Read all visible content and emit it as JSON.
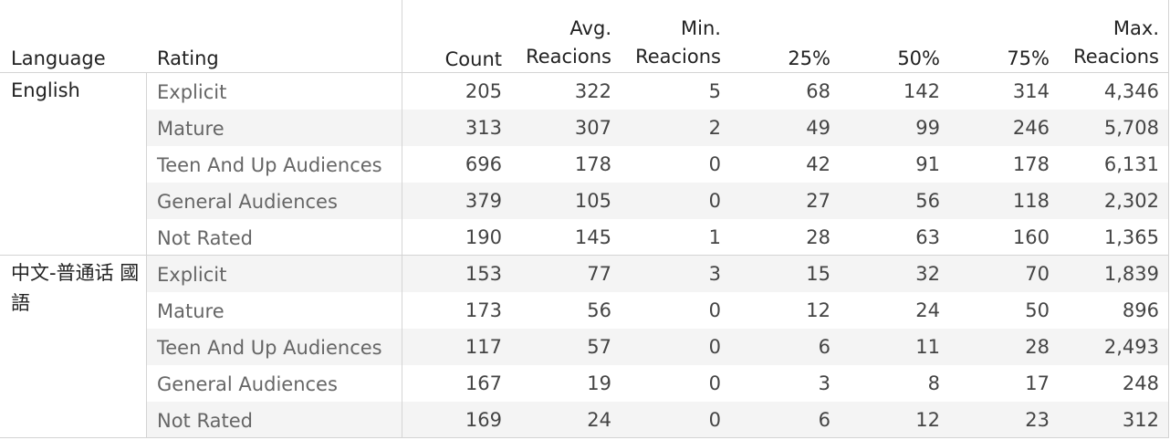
{
  "table": {
    "headers": {
      "language": "Language",
      "rating": "Rating",
      "count": "Count",
      "avg": [
        "Avg.",
        "Reacions"
      ],
      "min": [
        "Min.",
        "Reacions"
      ],
      "p25": "25%",
      "p50": "50%",
      "p75": "75%",
      "max": [
        "Max.",
        "Reacions"
      ]
    },
    "groups": [
      {
        "language": "English",
        "rows": [
          {
            "rating": "Explicit",
            "count": "205",
            "avg": "322",
            "min": "5",
            "p25": "68",
            "p50": "142",
            "p75": "314",
            "max": "4,346"
          },
          {
            "rating": "Mature",
            "count": "313",
            "avg": "307",
            "min": "2",
            "p25": "49",
            "p50": "99",
            "p75": "246",
            "max": "5,708"
          },
          {
            "rating": "Teen And Up Audiences",
            "count": "696",
            "avg": "178",
            "min": "0",
            "p25": "42",
            "p50": "91",
            "p75": "178",
            "max": "6,131"
          },
          {
            "rating": "General Audiences",
            "count": "379",
            "avg": "105",
            "min": "0",
            "p25": "27",
            "p50": "56",
            "p75": "118",
            "max": "2,302"
          },
          {
            "rating": "Not Rated",
            "count": "190",
            "avg": "145",
            "min": "1",
            "p25": "28",
            "p50": "63",
            "p75": "160",
            "max": "1,365"
          }
        ]
      },
      {
        "language": "中文-普通话 國語",
        "rows": [
          {
            "rating": "Explicit",
            "count": "153",
            "avg": "77",
            "min": "3",
            "p25": "15",
            "p50": "32",
            "p75": "70",
            "max": "1,839"
          },
          {
            "rating": "Mature",
            "count": "173",
            "avg": "56",
            "min": "0",
            "p25": "12",
            "p50": "24",
            "p75": "50",
            "max": "896"
          },
          {
            "rating": "Teen And Up Audiences",
            "count": "117",
            "avg": "57",
            "min": "0",
            "p25": "6",
            "p50": "11",
            "p75": "28",
            "max": "2,493"
          },
          {
            "rating": "General Audiences",
            "count": "167",
            "avg": "19",
            "min": "0",
            "p25": "3",
            "p50": "8",
            "p75": "17",
            "max": "248"
          },
          {
            "rating": "Not Rated",
            "count": "169",
            "avg": "24",
            "min": "0",
            "p25": "6",
            "p50": "12",
            "p75": "23",
            "max": "312"
          }
        ]
      }
    ]
  },
  "chart_data": {
    "type": "table",
    "columns": [
      "Language",
      "Rating",
      "Count",
      "Avg. Reacions",
      "Min. Reacions",
      "25%",
      "50%",
      "75%",
      "Max. Reacions"
    ],
    "rows": [
      [
        "English",
        "Explicit",
        205,
        322,
        5,
        68,
        142,
        314,
        4346
      ],
      [
        "English",
        "Mature",
        313,
        307,
        2,
        49,
        99,
        246,
        5708
      ],
      [
        "English",
        "Teen And Up Audiences",
        696,
        178,
        0,
        42,
        91,
        178,
        6131
      ],
      [
        "English",
        "General Audiences",
        379,
        105,
        0,
        27,
        56,
        118,
        2302
      ],
      [
        "English",
        "Not Rated",
        190,
        145,
        1,
        28,
        63,
        160,
        1365
      ],
      [
        "中文-普通话 國語",
        "Explicit",
        153,
        77,
        3,
        15,
        32,
        70,
        1839
      ],
      [
        "中文-普通话 國語",
        "Mature",
        173,
        56,
        0,
        12,
        24,
        50,
        896
      ],
      [
        "中文-普通话 國語",
        "Teen And Up Audiences",
        117,
        57,
        0,
        6,
        11,
        28,
        2493
      ],
      [
        "中文-普通话 國語",
        "General Audiences",
        167,
        19,
        0,
        3,
        8,
        17,
        248
      ],
      [
        "中文-普通话 國語",
        "Not Rated",
        169,
        24,
        0,
        6,
        12,
        23,
        312
      ]
    ]
  }
}
